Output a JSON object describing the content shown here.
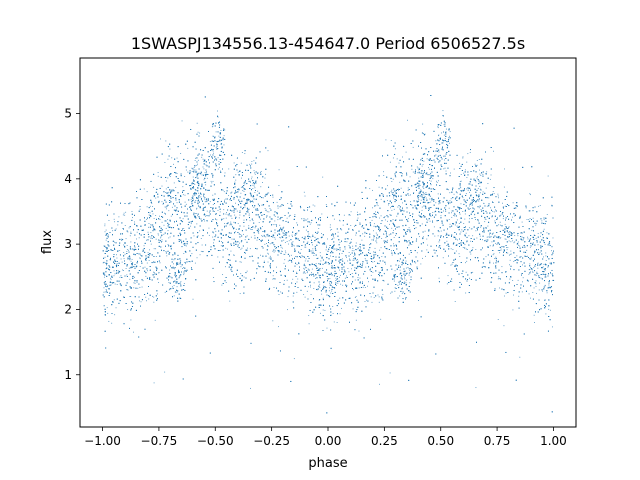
{
  "chart_data": {
    "type": "scatter",
    "title": "1SWASPJ134556.13-454647.0 Period 6506527.5s",
    "xlabel": "phase",
    "ylabel": "flux",
    "xlim": [
      -1.1,
      1.1
    ],
    "ylim": [
      0.2,
      5.85
    ],
    "x_ticks": [
      -1.0,
      -0.75,
      -0.5,
      -0.25,
      0.0,
      0.25,
      0.5,
      0.75,
      1.0
    ],
    "x_tick_labels": [
      "−1.00",
      "−0.75",
      "−0.50",
      "−0.25",
      "0.00",
      "0.25",
      "0.50",
      "0.75",
      "1.00"
    ],
    "y_ticks": [
      1,
      2,
      3,
      4,
      5
    ],
    "y_tick_labels": [
      "1",
      "2",
      "3",
      "4",
      "5"
    ],
    "grid": false,
    "legend": "none",
    "color": "#1f77b4",
    "series": [
      {
        "envelope_phase": [
          -1.0,
          -0.95,
          -0.9,
          -0.85,
          -0.8,
          -0.75,
          -0.7,
          -0.65,
          -0.6,
          -0.55,
          -0.5,
          -0.45,
          -0.4,
          -0.35,
          -0.3,
          -0.25,
          -0.2,
          -0.15,
          -0.1,
          -0.05,
          0.0
        ],
        "envelope_flux_center": [
          2.7,
          2.65,
          2.75,
          2.8,
          2.95,
          3.2,
          3.4,
          3.3,
          3.6,
          3.8,
          3.5,
          3.3,
          3.2,
          3.5,
          3.4,
          3.1,
          3.0,
          3.0,
          2.85,
          2.75,
          2.7
        ],
        "envelope_flux_spread": [
          0.45,
          0.45,
          0.45,
          0.45,
          0.45,
          0.5,
          0.55,
          0.6,
          0.55,
          0.55,
          0.5,
          0.5,
          0.5,
          0.5,
          0.5,
          0.45,
          0.45,
          0.45,
          0.45,
          0.45,
          0.45
        ],
        "clusters": [
          {
            "phase": -0.49,
            "phase_width": 0.03,
            "flux": 4.6,
            "flux_spread": 0.2
          },
          {
            "phase": -0.67,
            "phase_width": 0.04,
            "flux": 2.5,
            "flux_spread": 0.15
          },
          {
            "phase": -0.57,
            "phase_width": 0.03,
            "flux": 3.9,
            "flux_spread": 0.25
          },
          {
            "phase": -0.37,
            "phase_width": 0.05,
            "flux": 3.9,
            "flux_spread": 0.2
          }
        ],
        "point_count": 14000,
        "outlier_fraction": 0.012,
        "repeats_with_period": 1.0
      }
    ]
  }
}
